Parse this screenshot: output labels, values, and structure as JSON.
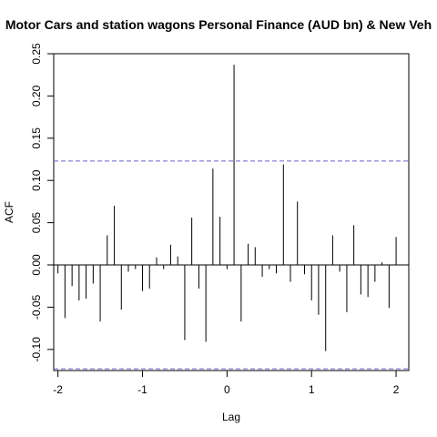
{
  "chart_data": {
    "type": "bar",
    "subtype": "acf-correlogram",
    "title": "Motor Cars and station wagons Personal Finance (AUD bn) & New Veh",
    "xlabel": "Lag",
    "ylabel": "ACF",
    "xlim": [
      -2.05,
      2.15
    ],
    "ylim": [
      -0.125,
      0.25
    ],
    "x_ticks": [
      -2,
      -1,
      0,
      1,
      2
    ],
    "x_tick_labels": [
      "-2",
      "-1",
      "0",
      "1",
      "2"
    ],
    "y_ticks": [
      -0.1,
      -0.05,
      0.0,
      0.05,
      0.1,
      0.15,
      0.2,
      0.25
    ],
    "y_tick_labels": [
      "-0.10",
      "-0.05",
      "0.00",
      "0.05",
      "0.10",
      "0.15",
      "0.20",
      "0.25"
    ],
    "confidence_bound": 0.123,
    "confidence_color": "#6666cc",
    "bar_color": "#000000",
    "lags": [
      -2.0,
      -1.917,
      -1.833,
      -1.75,
      -1.667,
      -1.583,
      -1.5,
      -1.417,
      -1.333,
      -1.25,
      -1.167,
      -1.083,
      -1.0,
      -0.917,
      -0.833,
      -0.75,
      -0.667,
      -0.583,
      -0.5,
      -0.417,
      -0.333,
      -0.25,
      -0.167,
      -0.083,
      0.0,
      0.083,
      0.167,
      0.25,
      0.333,
      0.417,
      0.5,
      0.583,
      0.667,
      0.75,
      0.833,
      0.917,
      1.0,
      1.083,
      1.167,
      1.25,
      1.333,
      1.417,
      1.5,
      1.583,
      1.667,
      1.75,
      1.833,
      1.917,
      2.0
    ],
    "values": [
      -0.01,
      -0.063,
      -0.025,
      -0.042,
      -0.04,
      -0.022,
      -0.067,
      0.035,
      0.07,
      -0.053,
      -0.008,
      -0.005,
      -0.031,
      -0.028,
      0.009,
      -0.005,
      0.024,
      0.01,
      -0.089,
      0.056,
      -0.028,
      -0.091,
      0.114,
      0.057,
      -0.005,
      0.237,
      -0.067,
      0.025,
      0.021,
      -0.014,
      -0.005,
      -0.01,
      0.119,
      -0.02,
      0.075,
      -0.011,
      -0.042,
      -0.059,
      -0.102,
      0.035,
      -0.008,
      -0.056,
      0.047,
      -0.035,
      -0.038,
      -0.02,
      0.003,
      -0.051,
      0.033
    ]
  }
}
